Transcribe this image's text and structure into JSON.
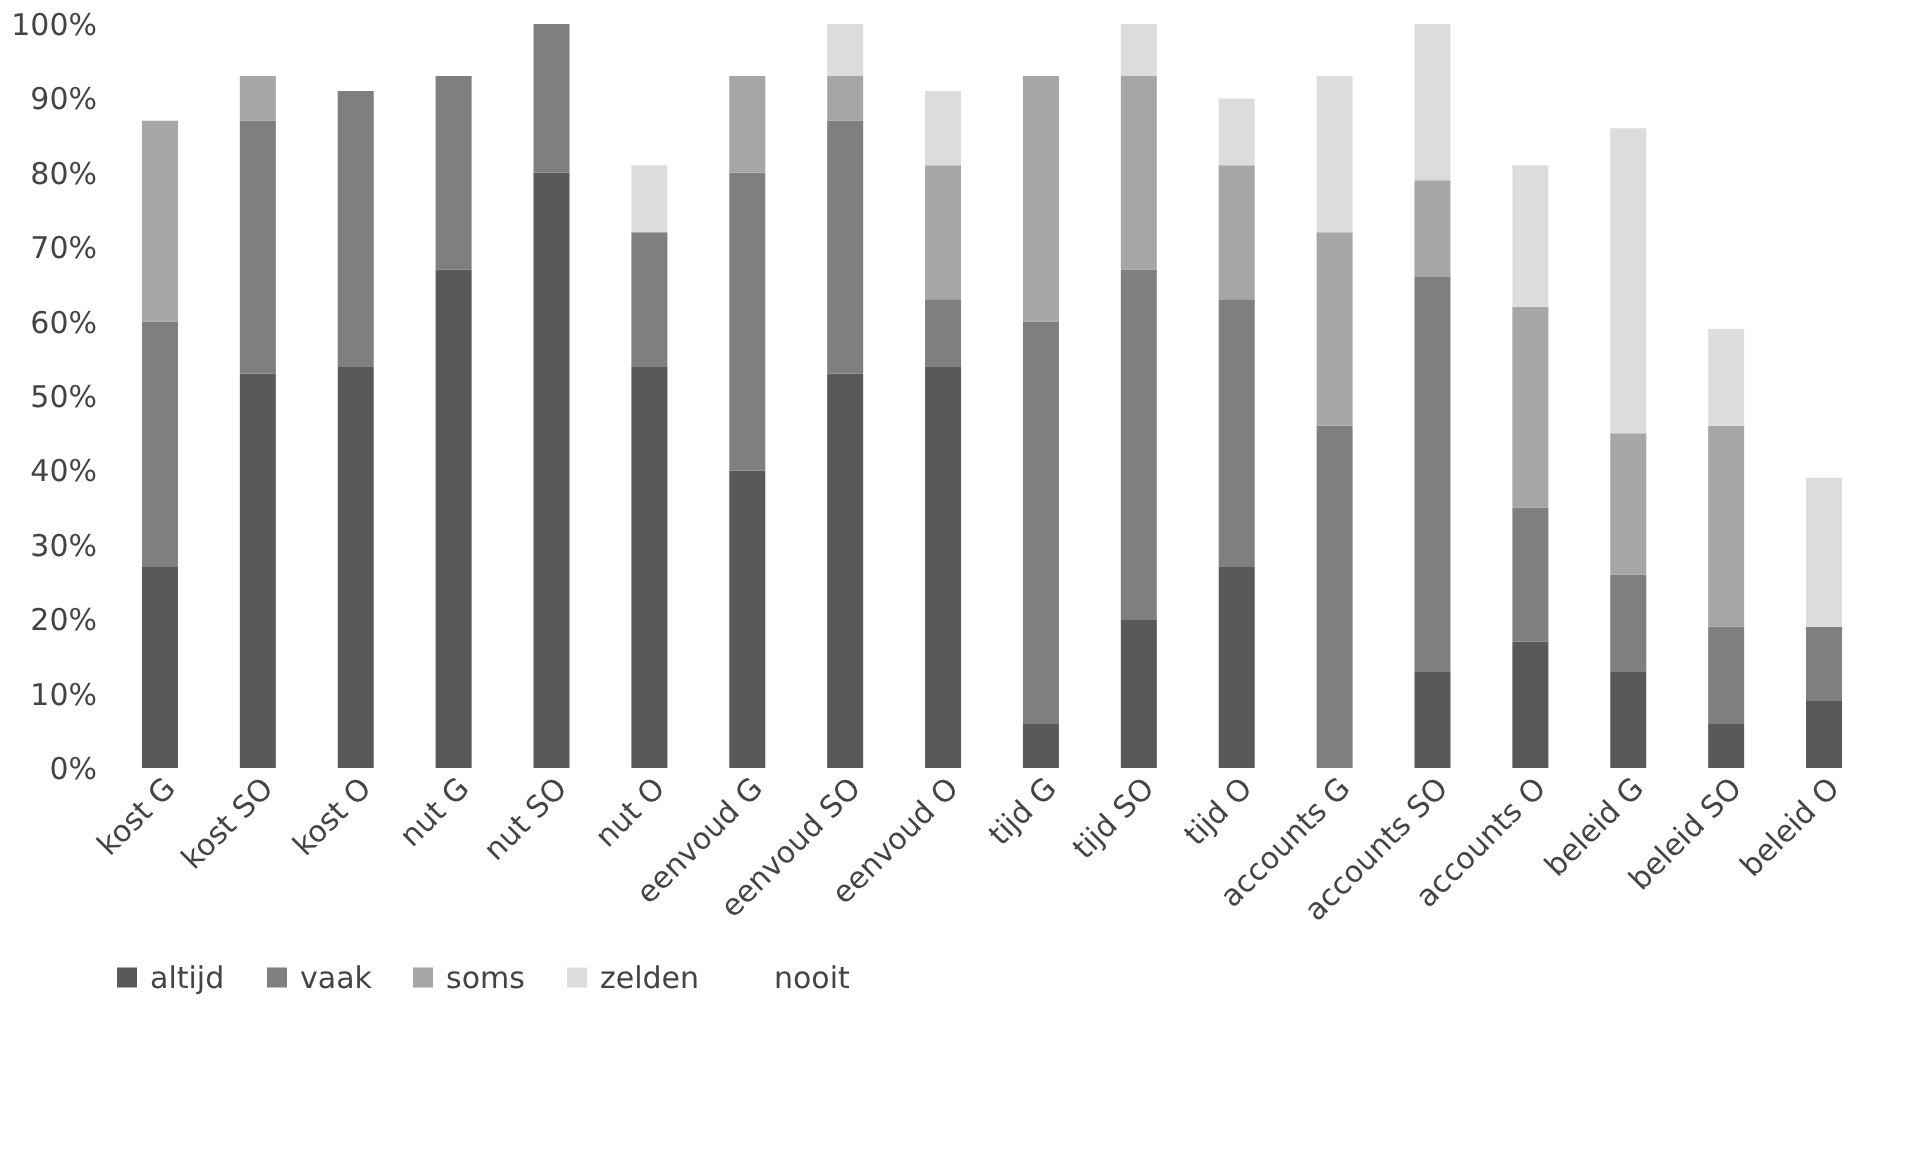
{
  "chart_data": {
    "type": "bar",
    "stacked": true,
    "categories": [
      "kost G",
      "kost SO",
      "kost O",
      "nut G",
      "nut SO",
      "nut O",
      "eenvoud G",
      "eenvoud SO",
      "eenvoud O",
      "tijd G",
      "tijd SO",
      "tijd O",
      "accounts G",
      "accounts SO",
      "accounts O",
      "beleid G",
      "beleid SO",
      "beleid O"
    ],
    "series": [
      {
        "name": "altijd",
        "color": "#595959",
        "values": [
          27,
          53,
          54,
          67,
          80,
          54,
          40,
          53,
          54,
          6,
          20,
          27,
          0,
          13,
          17,
          13,
          6,
          9
        ]
      },
      {
        "name": "vaak",
        "color": "#7f7f7f",
        "values": [
          33,
          34,
          37,
          26,
          20,
          18,
          40,
          34,
          9,
          54,
          47,
          36,
          46,
          53,
          18,
          13,
          13,
          10
        ]
      },
      {
        "name": "soms",
        "color": "#a6a6a6",
        "values": [
          27,
          6,
          0,
          0,
          0,
          0,
          13,
          6,
          18,
          33,
          26,
          18,
          26,
          13,
          27,
          19,
          27,
          0
        ]
      },
      {
        "name": "zelden",
        "color": "#dcdcdc",
        "values": [
          0,
          0,
          0,
          0,
          0,
          9,
          0,
          7,
          10,
          0,
          7,
          9,
          21,
          21,
          19,
          41,
          13,
          20
        ]
      },
      {
        "name": "nooit",
        "values": [
          null,
          null,
          null,
          null,
          null,
          null,
          null,
          null,
          null,
          null,
          null,
          null,
          null,
          null,
          null,
          null,
          null,
          null
        ]
      }
    ],
    "ylim": [
      0,
      100
    ],
    "yticks": [
      {
        "value": 0,
        "label": "0%"
      },
      {
        "value": 10,
        "label": "10%"
      },
      {
        "value": 20,
        "label": "20%"
      },
      {
        "value": 30,
        "label": "30%"
      },
      {
        "value": 40,
        "label": "40%"
      },
      {
        "value": 50,
        "label": "50%"
      },
      {
        "value": 60,
        "label": "60%"
      },
      {
        "value": 70,
        "label": "70%"
      },
      {
        "value": 80,
        "label": "80%"
      },
      {
        "value": 90,
        "label": "90%"
      },
      {
        "value": 100,
        "label": "100%"
      }
    ],
    "grid": false,
    "legend": "bottom"
  }
}
